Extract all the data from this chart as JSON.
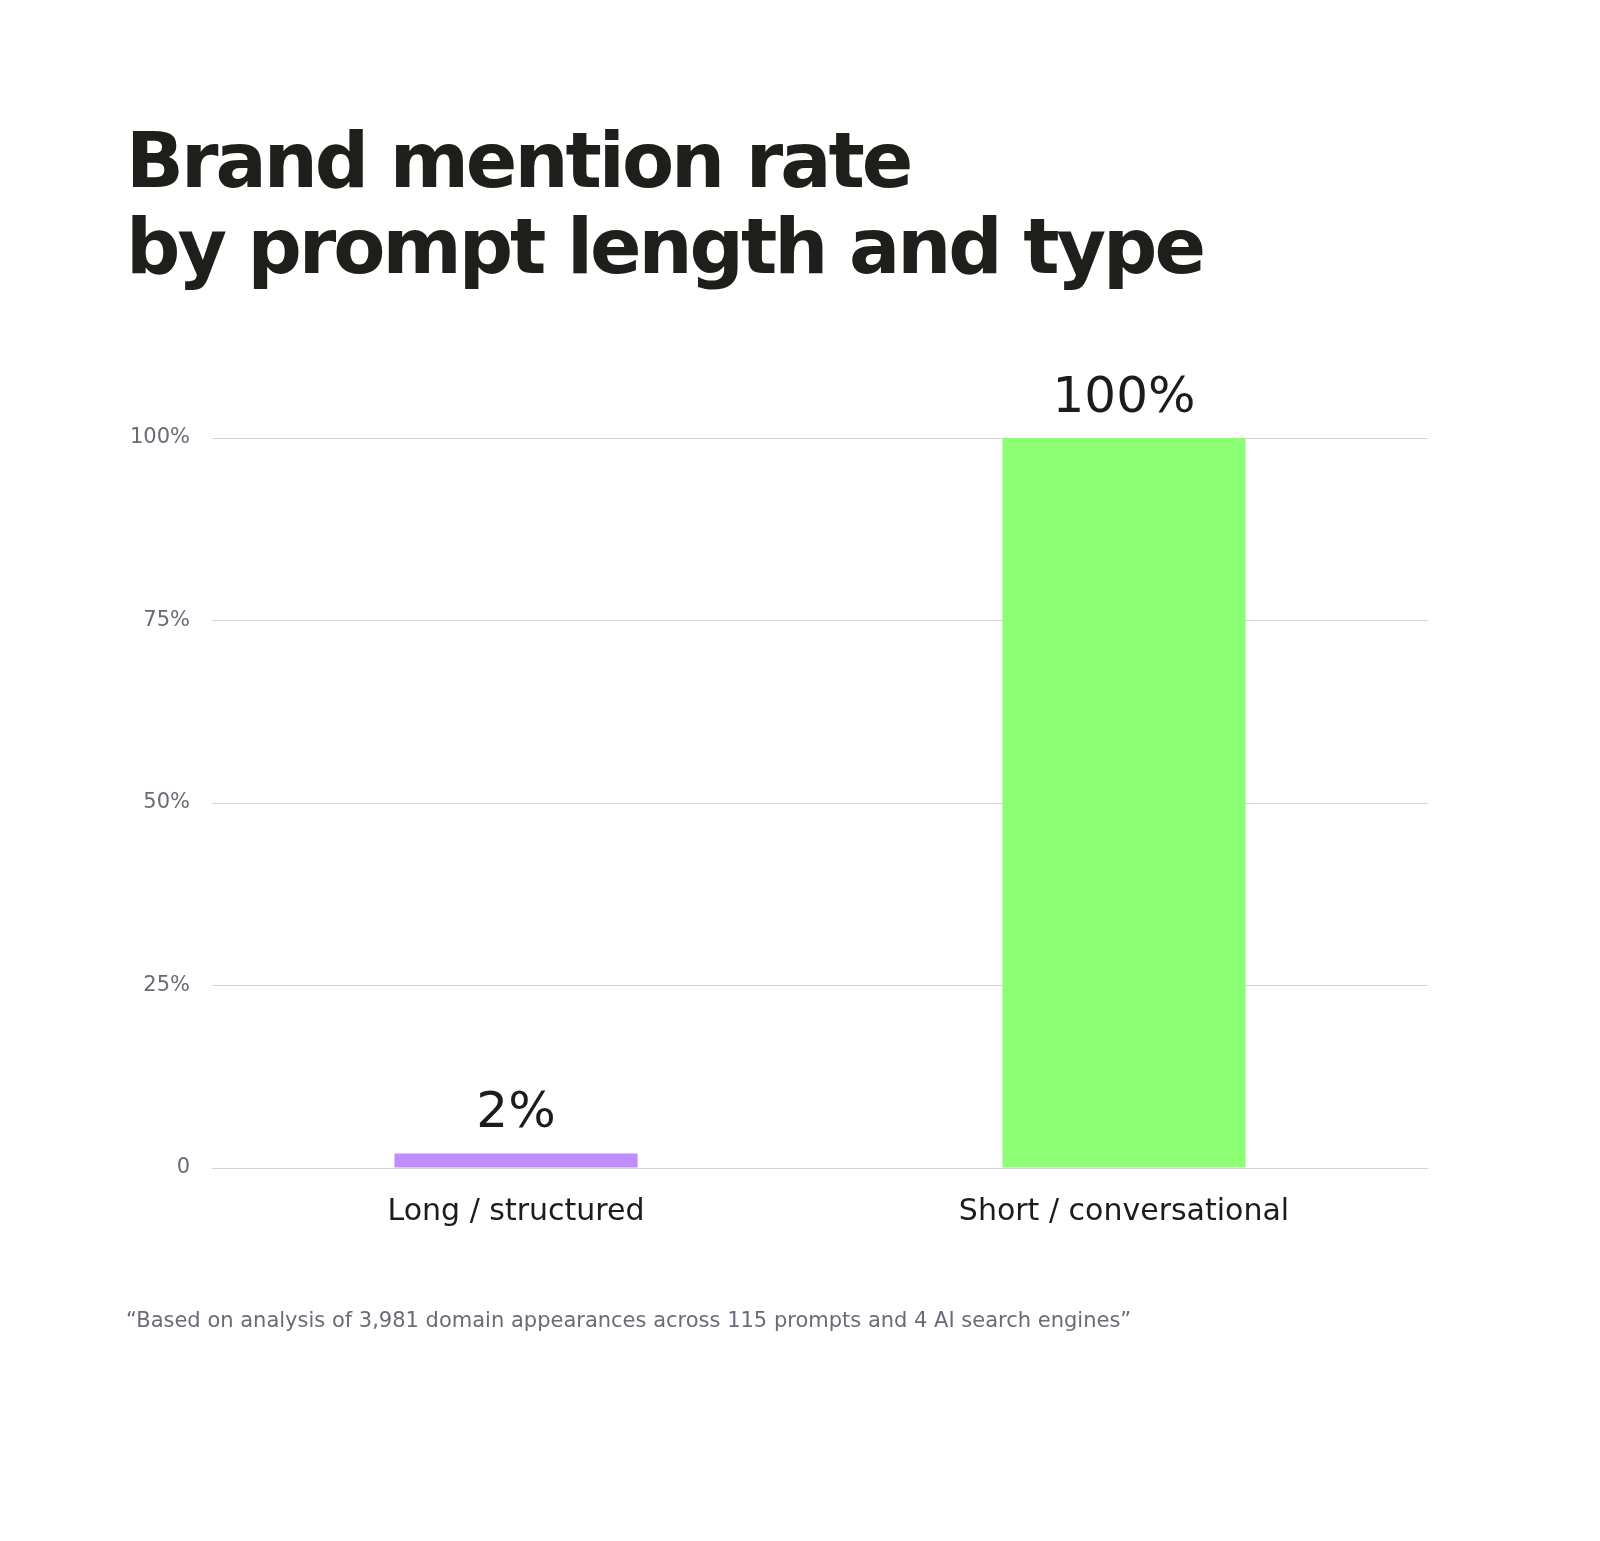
{
  "chart_data": {
    "type": "bar",
    "title": "Brand mention rate\nby prompt length and type",
    "categories": [
      "Long / structured",
      "Short / conversational"
    ],
    "values": [
      2,
      100
    ],
    "colors": [
      "#c18cff",
      "#8cff74"
    ],
    "value_labels": [
      "2%",
      "100%"
    ],
    "ylim": [
      0,
      100
    ],
    "yticks": [
      {
        "value": 0,
        "label": "0"
      },
      {
        "value": 25,
        "label": "25%"
      },
      {
        "value": 50,
        "label": "50%"
      },
      {
        "value": 75,
        "label": "75%"
      },
      {
        "value": 100,
        "label": "100%"
      }
    ],
    "grid": "y",
    "legend": false,
    "annotations": [
      "“Based on analysis of 3,981 domain appearances across 115 prompts and 4 AI search engines”"
    ]
  }
}
